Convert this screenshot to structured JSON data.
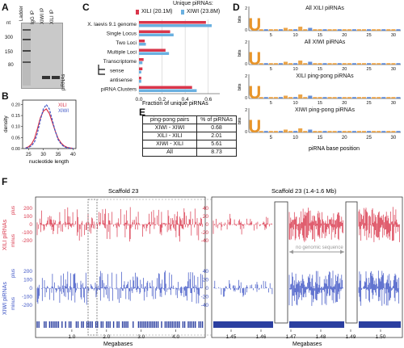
{
  "panels": {
    "A": {
      "label": "A",
      "ladder_label": "Ladder",
      "lanes": [
        "IgG IP",
        "XIWI IP",
        "XILI IP"
      ],
      "nt_label": "nt",
      "sizes": [
        "300",
        "150",
        "80"
      ],
      "band_label": "piRNAs"
    },
    "B": {
      "label": "B",
      "ylabel": "density",
      "xlabel": "nucleotide length",
      "yticks": [
        "0.20",
        "0.15",
        "0.10",
        "0.05",
        "0.00"
      ],
      "xticks": [
        "25",
        "30",
        "35",
        "40"
      ],
      "legend": [
        "XILI",
        "XIWI"
      ],
      "colors": {
        "XILI": "#d9364b",
        "XIWI": "#3b52c4"
      }
    },
    "C": {
      "label": "C",
      "title": "Unique piRNAs:",
      "legend": [
        "XILI (20.1M)",
        "XIWI (23.8M)"
      ],
      "xlabel": "Fraction of unique piRNAs",
      "xticks": [
        "0.0",
        "0.2",
        "0.4",
        "0.6"
      ],
      "categories": [
        "X. laevis 9.1 genome",
        "Single Locus",
        "Two Loci",
        "Multiple Loci",
        "Transcriptome",
        "sense",
        "antisense",
        "piRNA Clusters"
      ]
    },
    "D": {
      "label": "D",
      "ylabel": "bits",
      "xlabel": "piRNA base position",
      "rows": [
        "All XILI piRNAs",
        "All XIWI piRNAs",
        "XILI ping-pong piRNAs",
        "XIWI ping-pong piRNAs"
      ],
      "xticks": [
        "5",
        "10",
        "15",
        "20",
        "25",
        "30"
      ],
      "y2": "2",
      "y0": "0",
      "letter": "U"
    },
    "E": {
      "label": "E",
      "headers": [
        "ping-pong pairs",
        "% of piRNAs"
      ],
      "rows": [
        [
          "XIWI - XIWI",
          "0.68"
        ],
        [
          "XILI - XILI",
          "2.01"
        ],
        [
          "XIWI - XILI",
          "5.61"
        ],
        [
          "All",
          "8.73"
        ]
      ]
    },
    "F": {
      "label": "F",
      "left_title": "Scaffold 23",
      "right_title": "Scaffold 23 (1.4-1.6 Mb)",
      "xili_axis": "XILI piRNAs",
      "xiwi_axis": "XIWI piRNAs",
      "plus": "plus",
      "minus": "minus",
      "left_yticks_top": [
        "200",
        "100",
        "0",
        "-100",
        "-200"
      ],
      "left_yticks_bottom": [
        "200",
        "100",
        "0",
        "-100",
        "-200"
      ],
      "right_yticks_top": [
        "40",
        "20",
        "0",
        "-20",
        "-40"
      ],
      "right_yticks_bottom": [
        "40",
        "20",
        "0",
        "-20",
        "-40"
      ],
      "left_xticks": [
        "1.0",
        "2.0",
        "3.0",
        "4.0"
      ],
      "right_xticks": [
        "1.45",
        "1.46",
        "1.47",
        "1.48",
        "1.49",
        "1.50"
      ],
      "xlabel": "Megabases",
      "annotation": "no genomic sequence"
    }
  },
  "colors": {
    "red": "#d9364b",
    "blue": "#3b52c4",
    "orange": "#e8952a",
    "gray": "#888888"
  },
  "chart_data": [
    {
      "type": "line",
      "title": "",
      "xlabel": "nucleotide length",
      "ylabel": "density",
      "xlim": [
        23,
        41
      ],
      "ylim": [
        0,
        0.22
      ],
      "x": [
        24,
        25,
        26,
        27,
        28,
        29,
        30,
        31,
        32,
        33,
        34,
        35,
        36,
        37,
        38,
        39,
        40
      ],
      "series": [
        {
          "name": "XILI",
          "values": [
            0.003,
            0.008,
            0.02,
            0.045,
            0.09,
            0.14,
            0.17,
            0.18,
            0.16,
            0.12,
            0.08,
            0.045,
            0.025,
            0.012,
            0.006,
            0.003,
            0.001
          ]
        },
        {
          "name": "XIWI",
          "values": [
            0.002,
            0.005,
            0.012,
            0.03,
            0.07,
            0.13,
            0.18,
            0.2,
            0.18,
            0.13,
            0.08,
            0.04,
            0.02,
            0.008,
            0.004,
            0.002,
            0.001
          ]
        }
      ]
    },
    {
      "type": "bar",
      "title": "Unique piRNAs:",
      "xlabel": "Fraction of unique piRNAs",
      "xlim": [
        0,
        0.7
      ],
      "categories": [
        "X. laevis 9.1 genome",
        "Single Locus",
        "Two Loci",
        "Multiple Loci",
        "Transcriptome",
        "sense",
        "antisense",
        "piRNA Clusters"
      ],
      "series": [
        {
          "name": "XILI (20.1M)",
          "values": [
            0.58,
            0.27,
            0.05,
            0.23,
            0.04,
            0.03,
            0.02,
            0.46
          ]
        },
        {
          "name": "XIWI (23.8M)",
          "values": [
            0.63,
            0.3,
            0.06,
            0.26,
            0.03,
            0.02,
            0.02,
            0.5
          ]
        }
      ]
    }
  ]
}
